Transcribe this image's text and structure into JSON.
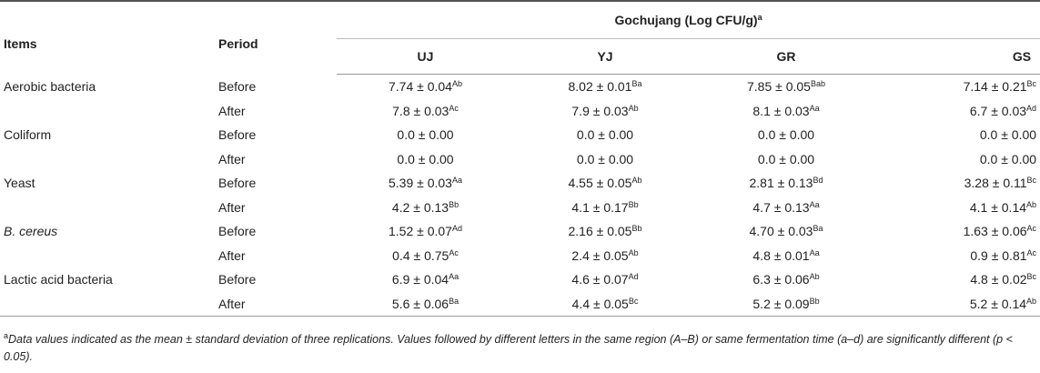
{
  "header": {
    "items": "Items",
    "period": "Period",
    "group": "Gochujang (Log CFU/g)",
    "group_sup": "a",
    "cols": [
      "UJ",
      "YJ",
      "GR",
      "GS"
    ]
  },
  "rows": [
    {
      "item": "Aerobic bacteria",
      "period": "Before",
      "v": [
        [
          "7.74 ± 0.04",
          "Ab"
        ],
        [
          "8.02 ± 0.01",
          "Ba"
        ],
        [
          "7.85 ± 0.05",
          "Bab"
        ],
        [
          "7.14 ± 0.21",
          "Bc"
        ]
      ]
    },
    {
      "item": "",
      "period": "After",
      "v": [
        [
          "7.8 ± 0.03",
          "Ac"
        ],
        [
          "7.9 ± 0.03",
          "Ab"
        ],
        [
          "8.1 ± 0.03",
          "Aa"
        ],
        [
          "6.7 ± 0.03",
          "Ad"
        ]
      ]
    },
    {
      "item": "Coliform",
      "period": "Before",
      "v": [
        [
          "0.0 ± 0.00",
          ""
        ],
        [
          "0.0 ± 0.00",
          ""
        ],
        [
          "0.0 ± 0.00",
          ""
        ],
        [
          "0.0 ± 0.00",
          ""
        ]
      ]
    },
    {
      "item": "",
      "period": "After",
      "v": [
        [
          "0.0 ± 0.00",
          ""
        ],
        [
          "0.0 ± 0.00",
          ""
        ],
        [
          "0.0 ± 0.00",
          ""
        ],
        [
          "0.0 ± 0.00",
          ""
        ]
      ]
    },
    {
      "item": "Yeast",
      "period": "Before",
      "v": [
        [
          "5.39 ± 0.03",
          "Aa"
        ],
        [
          "4.55 ± 0.05",
          "Ab"
        ],
        [
          "2.81 ± 0.13",
          "Bd"
        ],
        [
          "3.28 ± 0.11",
          "Bc"
        ]
      ]
    },
    {
      "item": "",
      "period": "After",
      "v": [
        [
          "4.2 ± 0.13",
          "Bb"
        ],
        [
          "4.1 ± 0.17",
          "Bb"
        ],
        [
          "4.7 ± 0.13",
          "Aa"
        ],
        [
          "4.1 ± 0.14",
          "Ab"
        ]
      ]
    },
    {
      "item": "B. cereus",
      "italic": true,
      "period": "Before",
      "v": [
        [
          "1.52 ± 0.07",
          "Ad"
        ],
        [
          "2.16 ± 0.05",
          "Bb"
        ],
        [
          "4.70 ± 0.03",
          "Ba"
        ],
        [
          "1.63 ± 0.06",
          "Ac"
        ]
      ]
    },
    {
      "item": "",
      "period": "After",
      "v": [
        [
          "0.4 ± 0.75",
          "Ac"
        ],
        [
          "2.4 ± 0.05",
          "Ab"
        ],
        [
          "4.8 ± 0.01",
          "Aa"
        ],
        [
          "0.9 ± 0.81",
          "Ac"
        ]
      ]
    },
    {
      "item": "Lactic acid bacteria",
      "period": "Before",
      "v": [
        [
          "6.9 ± 0.04",
          "Aa"
        ],
        [
          "4.6 ± 0.07",
          "Ad"
        ],
        [
          "6.3 ± 0.06",
          "Ab"
        ],
        [
          "4.8 ± 0.02",
          "Bc"
        ]
      ]
    },
    {
      "item": "",
      "period": "After",
      "v": [
        [
          "5.6 ± 0.06",
          "Ba"
        ],
        [
          "4.4 ± 0.05",
          "Bc"
        ],
        [
          "5.2 ± 0.09",
          "Bb"
        ],
        [
          "5.2 ± 0.14",
          "Ab"
        ]
      ]
    }
  ],
  "footnote": {
    "marker": "a",
    "text": "Data values indicated as the mean ± standard deviation of three replications. Values followed by different letters in the same region (A–B) or same fermentation time (a–d) are significantly different (p < 0.05)."
  }
}
